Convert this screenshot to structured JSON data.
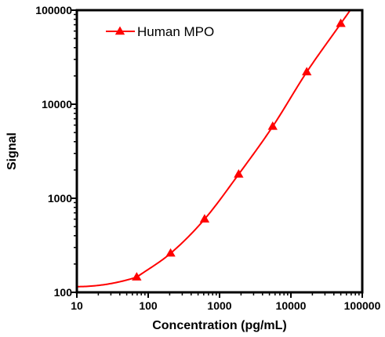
{
  "chart_data": {
    "type": "scatter",
    "title": "",
    "xlabel": "Concentration (pg/mL)",
    "ylabel": "Signal",
    "x_scale": "log",
    "y_scale": "log",
    "xlim": [
      10,
      100000
    ],
    "ylim": [
      100,
      100000
    ],
    "x_ticks": [
      10,
      100,
      1000,
      10000,
      100000
    ],
    "y_ticks": [
      100,
      1000,
      10000,
      100000
    ],
    "x_tick_labels": [
      "10",
      "100",
      "1000",
      "10000",
      "100000"
    ],
    "y_tick_labels": [
      "100",
      "1000",
      "10000",
      "100000"
    ],
    "grid": false,
    "legend": "top-left",
    "series": [
      {
        "name": "Human MPO",
        "color": "#ff0000",
        "marker": "triangle",
        "line": "fitted-curve",
        "x": [
          69,
          206,
          617,
          1852,
          5556,
          16667,
          50000
        ],
        "y": [
          145,
          260,
          600,
          1800,
          5800,
          22000,
          72000
        ]
      }
    ]
  }
}
